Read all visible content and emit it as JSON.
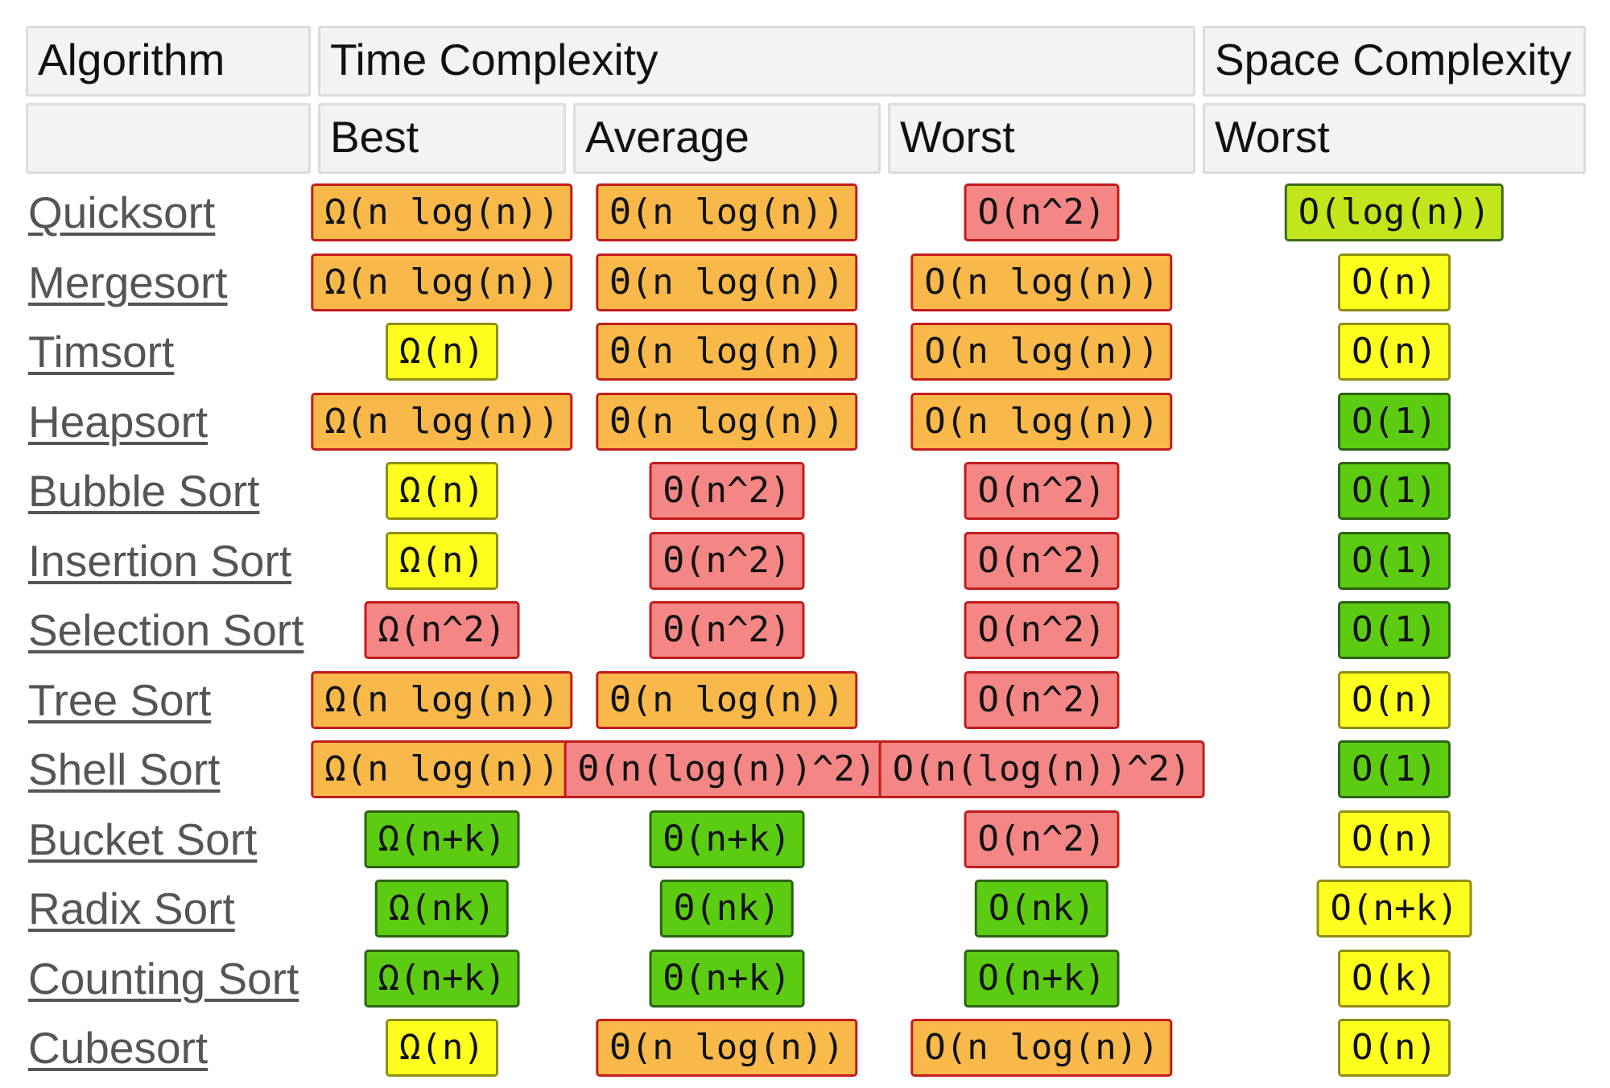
{
  "header": {
    "algorithm": "Algorithm",
    "time_complexity": "Time Complexity",
    "space_complexity": "Space Complexity",
    "best": "Best",
    "average": "Average",
    "worst": "Worst",
    "space_worst": "Worst"
  },
  "colors": {
    "orange": {
      "bg": "#f8b84a",
      "border": "#c31b1b"
    },
    "red": {
      "bg": "#f58686",
      "border": "#c31b1b"
    },
    "yellow": {
      "bg": "#ffff1f",
      "border": "#8e8e13"
    },
    "green": {
      "bg": "#5ccc12",
      "border": "#2c6312"
    },
    "lime": {
      "bg": "#c2e61c",
      "border": "#3a6c14"
    }
  },
  "rows": [
    {
      "name": "Quicksort",
      "best": {
        "text": "Ω(n log(n))",
        "c": "orange"
      },
      "average": {
        "text": "Θ(n log(n))",
        "c": "orange"
      },
      "worst": {
        "text": "O(n^2)",
        "c": "red"
      },
      "space": {
        "text": "O(log(n))",
        "c": "lime"
      }
    },
    {
      "name": "Mergesort",
      "best": {
        "text": "Ω(n log(n))",
        "c": "orange"
      },
      "average": {
        "text": "Θ(n log(n))",
        "c": "orange"
      },
      "worst": {
        "text": "O(n log(n))",
        "c": "orange"
      },
      "space": {
        "text": "O(n)",
        "c": "yellow"
      }
    },
    {
      "name": "Timsort",
      "best": {
        "text": "Ω(n)",
        "c": "yellow"
      },
      "average": {
        "text": "Θ(n log(n))",
        "c": "orange"
      },
      "worst": {
        "text": "O(n log(n))",
        "c": "orange"
      },
      "space": {
        "text": "O(n)",
        "c": "yellow"
      }
    },
    {
      "name": "Heapsort",
      "best": {
        "text": "Ω(n log(n))",
        "c": "orange"
      },
      "average": {
        "text": "Θ(n log(n))",
        "c": "orange"
      },
      "worst": {
        "text": "O(n log(n))",
        "c": "orange"
      },
      "space": {
        "text": "O(1)",
        "c": "green"
      }
    },
    {
      "name": "Bubble Sort",
      "best": {
        "text": "Ω(n)",
        "c": "yellow"
      },
      "average": {
        "text": "Θ(n^2)",
        "c": "red"
      },
      "worst": {
        "text": "O(n^2)",
        "c": "red"
      },
      "space": {
        "text": "O(1)",
        "c": "green"
      }
    },
    {
      "name": "Insertion Sort",
      "best": {
        "text": "Ω(n)",
        "c": "yellow"
      },
      "average": {
        "text": "Θ(n^2)",
        "c": "red"
      },
      "worst": {
        "text": "O(n^2)",
        "c": "red"
      },
      "space": {
        "text": "O(1)",
        "c": "green"
      }
    },
    {
      "name": "Selection Sort",
      "best": {
        "text": "Ω(n^2)",
        "c": "red"
      },
      "average": {
        "text": "Θ(n^2)",
        "c": "red"
      },
      "worst": {
        "text": "O(n^2)",
        "c": "red"
      },
      "space": {
        "text": "O(1)",
        "c": "green"
      }
    },
    {
      "name": "Tree Sort",
      "best": {
        "text": "Ω(n log(n))",
        "c": "orange"
      },
      "average": {
        "text": "Θ(n log(n))",
        "c": "orange"
      },
      "worst": {
        "text": "O(n^2)",
        "c": "red"
      },
      "space": {
        "text": "O(n)",
        "c": "yellow"
      }
    },
    {
      "name": "Shell Sort",
      "best": {
        "text": "Ω(n log(n))",
        "c": "orange"
      },
      "average": {
        "text": "Θ(n(log(n))^2)",
        "c": "red"
      },
      "worst": {
        "text": "O(n(log(n))^2)",
        "c": "red"
      },
      "space": {
        "text": "O(1)",
        "c": "green"
      }
    },
    {
      "name": "Bucket Sort",
      "best": {
        "text": "Ω(n+k)",
        "c": "green"
      },
      "average": {
        "text": "Θ(n+k)",
        "c": "green"
      },
      "worst": {
        "text": "O(n^2)",
        "c": "red"
      },
      "space": {
        "text": "O(n)",
        "c": "yellow"
      }
    },
    {
      "name": "Radix Sort",
      "best": {
        "text": "Ω(nk)",
        "c": "green"
      },
      "average": {
        "text": "Θ(nk)",
        "c": "green"
      },
      "worst": {
        "text": "O(nk)",
        "c": "green"
      },
      "space": {
        "text": "O(n+k)",
        "c": "yellow"
      }
    },
    {
      "name": "Counting Sort",
      "best": {
        "text": "Ω(n+k)",
        "c": "green"
      },
      "average": {
        "text": "Θ(n+k)",
        "c": "green"
      },
      "worst": {
        "text": "O(n+k)",
        "c": "green"
      },
      "space": {
        "text": "O(k)",
        "c": "yellow"
      }
    },
    {
      "name": "Cubesort",
      "best": {
        "text": "Ω(n)",
        "c": "yellow"
      },
      "average": {
        "text": "Θ(n log(n))",
        "c": "orange"
      },
      "worst": {
        "text": "O(n log(n))",
        "c": "orange"
      },
      "space": {
        "text": "O(n)",
        "c": "yellow"
      }
    }
  ]
}
